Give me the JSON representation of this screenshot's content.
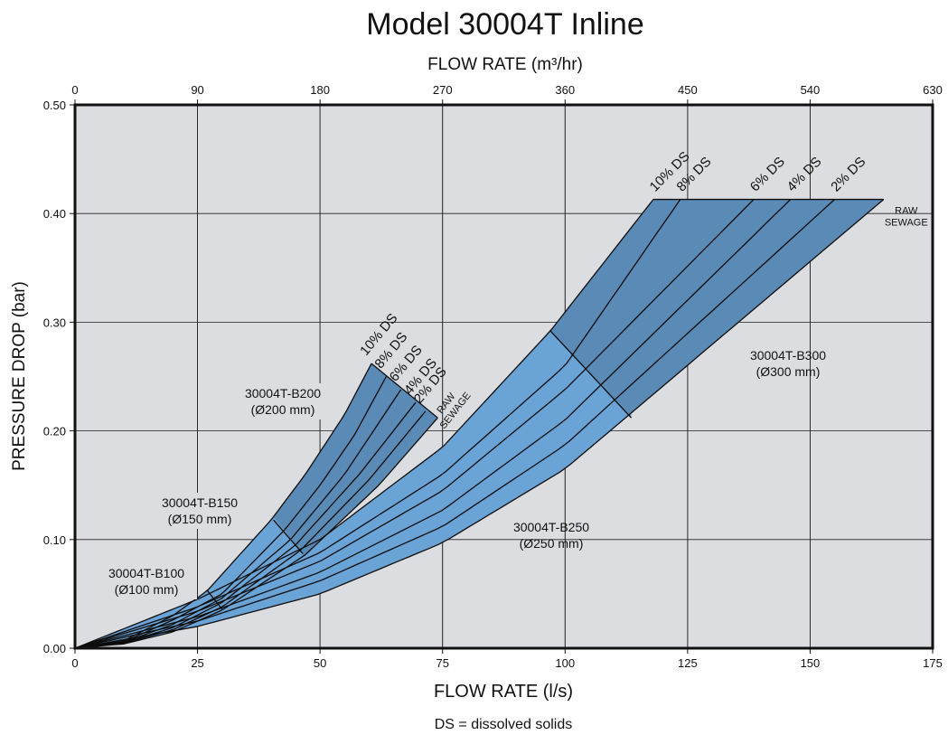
{
  "chart_data": {
    "type": "area",
    "title": "Model 30004T Inline",
    "top_axis_label": "FLOW RATE (m³/hr)",
    "xlabel": "FLOW RATE (l/s)",
    "ylabel": "PRESSURE DROP  (bar)",
    "footnote": "DS = dissolved solids",
    "xlim": [
      0,
      175
    ],
    "ylim": [
      0,
      0.5
    ],
    "top_xlim": [
      0,
      630
    ],
    "x_ticks": [
      "0",
      "25",
      "50",
      "75",
      "100",
      "125",
      "150",
      "175"
    ],
    "top_x_ticks": [
      "0",
      "90",
      "180",
      "270",
      "360",
      "450",
      "540",
      "630"
    ],
    "y_ticks": [
      "0.00",
      "0.10",
      "0.20",
      "0.30",
      "0.40",
      "0.50"
    ],
    "grid": true,
    "colors": {
      "background": "#dcdde0",
      "light_region": "#6aa3d6",
      "dark_region": "#5a8ab6",
      "curve": "#0d0d0d"
    },
    "ds_labels": [
      "10% DS",
      "8% DS",
      "6% DS",
      "4% DS",
      "2% DS"
    ],
    "raw_sewage_label": [
      "RAW",
      "SEWAGE"
    ],
    "models": [
      {
        "name": "30004T-B100",
        "diameter": "(Ø100 mm)",
        "x_range": [
          0,
          27
        ]
      },
      {
        "name": "30004T-B150",
        "diameter": "(Ø150 mm)",
        "x_range": [
          0,
          47
        ]
      },
      {
        "name": "30004T-B200",
        "diameter": "(Ø200 mm)",
        "x_range": [
          0,
          74
        ]
      },
      {
        "name": "30004T-B250",
        "diameter": "(Ø250 mm)",
        "x_range": [
          0,
          113
        ]
      },
      {
        "name": "30004T-B300",
        "diameter": "(Ø300 mm)",
        "x_range": [
          0,
          165
        ]
      }
    ],
    "series_small_band": [
      {
        "name": "10% DS",
        "points": [
          [
            0,
            0
          ],
          [
            10,
            0.007
          ],
          [
            20,
            0.03
          ],
          [
            27,
            0.053
          ],
          [
            40,
            0.118
          ],
          [
            47,
            0.16
          ],
          [
            55,
            0.215
          ],
          [
            60.5,
            0.262
          ]
        ]
      },
      {
        "name": "8% DS",
        "points": [
          [
            0,
            0
          ],
          [
            10,
            0.006
          ],
          [
            20,
            0.026
          ],
          [
            30,
            0.05
          ],
          [
            43,
            0.11
          ],
          [
            50,
            0.15
          ],
          [
            57,
            0.196
          ],
          [
            63.5,
            0.25
          ]
        ]
      },
      {
        "name": "6% DS",
        "points": [
          [
            0,
            0
          ],
          [
            10,
            0.0055
          ],
          [
            20,
            0.022
          ],
          [
            30,
            0.046
          ],
          [
            44,
            0.1
          ],
          [
            55,
            0.16
          ],
          [
            66.5,
            0.238
          ]
        ]
      },
      {
        "name": "4% DS",
        "points": [
          [
            0,
            0
          ],
          [
            10,
            0.005
          ],
          [
            20,
            0.019
          ],
          [
            30,
            0.042
          ],
          [
            45,
            0.095
          ],
          [
            58,
            0.16
          ],
          [
            69.5,
            0.226
          ]
        ]
      },
      {
        "name": "2% DS",
        "points": [
          [
            0,
            0
          ],
          [
            10,
            0.0045
          ],
          [
            20,
            0.017
          ],
          [
            30,
            0.038
          ],
          [
            46,
            0.09
          ],
          [
            60,
            0.155
          ],
          [
            71.5,
            0.218
          ]
        ]
      },
      {
        "name": "RAW SEWAGE",
        "points": [
          [
            0,
            0
          ],
          [
            10,
            0.004
          ],
          [
            20,
            0.015
          ],
          [
            30,
            0.035
          ],
          [
            47,
            0.086
          ],
          [
            62,
            0.15
          ],
          [
            74,
            0.212
          ]
        ]
      }
    ],
    "series_large_band": [
      {
        "name": "10% DS",
        "points": [
          [
            0,
            0
          ],
          [
            25,
            0.045
          ],
          [
            50,
            0.1
          ],
          [
            75,
            0.185
          ],
          [
            97,
            0.292
          ],
          [
            118,
            0.413
          ]
        ]
      },
      {
        "name": "8% DS",
        "points": [
          [
            0,
            0
          ],
          [
            25,
            0.038
          ],
          [
            50,
            0.088
          ],
          [
            75,
            0.16
          ],
          [
            100,
            0.26
          ],
          [
            123.5,
            0.413
          ]
        ]
      },
      {
        "name": "6% DS",
        "points": [
          [
            0,
            0
          ],
          [
            25,
            0.034
          ],
          [
            50,
            0.08
          ],
          [
            75,
            0.145
          ],
          [
            100,
            0.238
          ],
          [
            138.5,
            0.413
          ]
        ]
      },
      {
        "name": "4% DS",
        "points": [
          [
            0,
            0
          ],
          [
            25,
            0.029
          ],
          [
            50,
            0.07
          ],
          [
            75,
            0.127
          ],
          [
            100,
            0.21
          ],
          [
            146,
            0.413
          ]
        ]
      },
      {
        "name": "2% DS",
        "points": [
          [
            0,
            0
          ],
          [
            25,
            0.025
          ],
          [
            50,
            0.062
          ],
          [
            75,
            0.112
          ],
          [
            100,
            0.187
          ],
          [
            155,
            0.413
          ]
        ]
      },
      {
        "name": "RAW SEWAGE",
        "points": [
          [
            0,
            0
          ],
          [
            25,
            0.02
          ],
          [
            50,
            0.05
          ],
          [
            75,
            0.097
          ],
          [
            100,
            0.165
          ],
          [
            165,
            0.413
          ]
        ]
      }
    ],
    "model_boundaries": [
      {
        "points": [
          [
            27,
            0.053
          ],
          [
            30,
            0.036
          ]
        ]
      },
      {
        "points": [
          [
            40.5,
            0.118
          ],
          [
            46.5,
            0.087
          ]
        ]
      },
      {
        "points": [
          [
            97,
            0.292
          ],
          [
            113.5,
            0.212
          ]
        ]
      }
    ]
  }
}
